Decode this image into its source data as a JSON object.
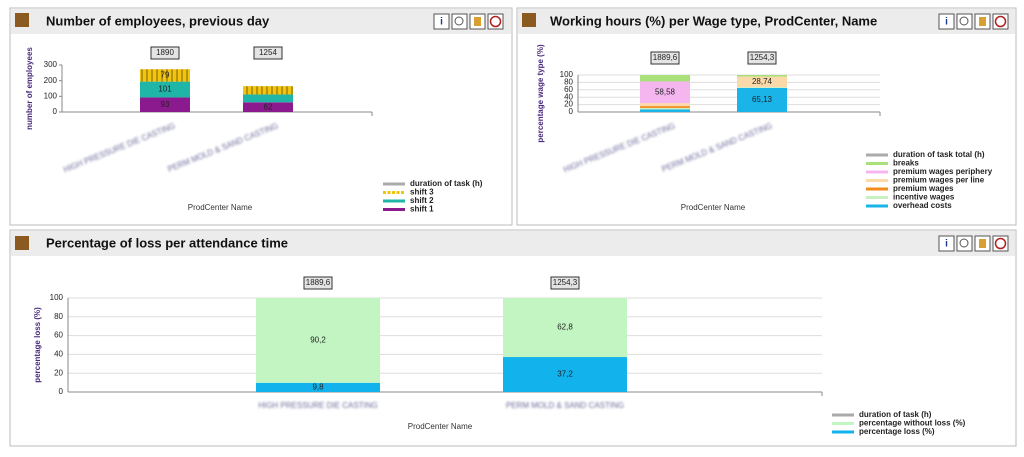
{
  "chart_data": [
    {
      "type": "bar",
      "title": "Number of employees, previous day",
      "categories": [
        "HIGH PRESSURE DIE CASTING",
        "PERM MOLD & SAND CASTING"
      ],
      "x_label": "ProdCenter Name",
      "y_label": "number of employees",
      "ylim": [
        0,
        300
      ],
      "yticks": [
        0,
        100,
        200,
        300
      ],
      "grid": false,
      "stacked": true,
      "series": [
        {
          "name": "shift 1",
          "color": "#8b1a8f",
          "values": [
            93,
            62
          ],
          "value_labels": [
            "93",
            "62"
          ]
        },
        {
          "name": "shift 2",
          "color": "#1fb5a7",
          "values": [
            101,
            50
          ],
          "value_labels": [
            "101",
            null
          ]
        },
        {
          "name": "shift 3",
          "color": "#f2c40f",
          "hatch": true,
          "values": [
            79,
            53
          ],
          "value_labels": [
            "79",
            null
          ]
        }
      ],
      "total_series": {
        "name": "duration of task (h)",
        "color": "#aaaaaa",
        "values": [
          1890,
          1254
        ],
        "value_labels": [
          "1890",
          "1254"
        ]
      }
    },
    {
      "type": "bar",
      "title": "Working hours (%) per Wage type, ProdCenter, Name",
      "categories": [
        "HIGH PRESSURE DIE CASTING",
        "PERM MOLD & SAND CASTING"
      ],
      "x_label": "ProdCenter Name",
      "y_label": "percentage wage type (%)",
      "ylim": [
        0,
        100
      ],
      "yticks": [
        0,
        20,
        40,
        60,
        80,
        100
      ],
      "grid": true,
      "stacked": true,
      "series": [
        {
          "name": "overhead costs",
          "color": "#1ab4e8",
          "values": [
            7,
            65.13
          ],
          "value_labels": [
            null,
            "65,13"
          ]
        },
        {
          "name": "incentive wages",
          "color": "#c8f0c0",
          "values": [
            4,
            2
          ],
          "value_labels": [
            null,
            null
          ]
        },
        {
          "name": "premium wages",
          "color": "#f08c1e",
          "values": [
            5,
            0
          ],
          "value_labels": [
            null,
            null
          ]
        },
        {
          "name": "premium wages per line",
          "color": "#fbd9a8",
          "values": [
            8,
            28.74
          ],
          "value_labels": [
            null,
            "28,74"
          ]
        },
        {
          "name": "premium wages periphery",
          "color": "#f5b6f0",
          "values": [
            58.58,
            0
          ],
          "value_labels": [
            "58,58",
            null
          ]
        },
        {
          "name": "breaks",
          "color": "#a8e07a",
          "values": [
            17.42,
            4.13
          ],
          "value_labels": [
            null,
            null
          ]
        }
      ],
      "total_series": {
        "name": "duration of task total (h)",
        "color": "#aaaaaa",
        "values": [
          1889.6,
          1254.3
        ],
        "value_labels": [
          "1889,6",
          "1254,3"
        ]
      }
    },
    {
      "type": "bar",
      "title": "Percentage of loss per attendance time",
      "categories": [
        "HIGH PRESSURE DIE CASTING",
        "PERM MOLD & SAND CASTING"
      ],
      "x_label": "ProdCenter Name",
      "y_label": "percentage loss (%)",
      "ylim": [
        0,
        100
      ],
      "yticks": [
        0,
        20,
        40,
        60,
        80,
        100
      ],
      "grid": true,
      "stacked": true,
      "series": [
        {
          "name": "percentage loss (%)",
          "color": "#12b3ec",
          "values": [
            9.8,
            37.2
          ],
          "value_labels": [
            "9,8",
            "37,2"
          ]
        },
        {
          "name": "percentage without loss (%)",
          "color": "#c2f5c2",
          "values": [
            90.2,
            62.8
          ],
          "value_labels": [
            "90,2",
            "62,8"
          ]
        }
      ],
      "total_series": {
        "name": "duration of task (h)",
        "color": "#aaaaaa",
        "values": [
          1889.6,
          1254.3
        ],
        "value_labels": [
          "1889,6",
          "1254,3"
        ]
      }
    }
  ]
}
